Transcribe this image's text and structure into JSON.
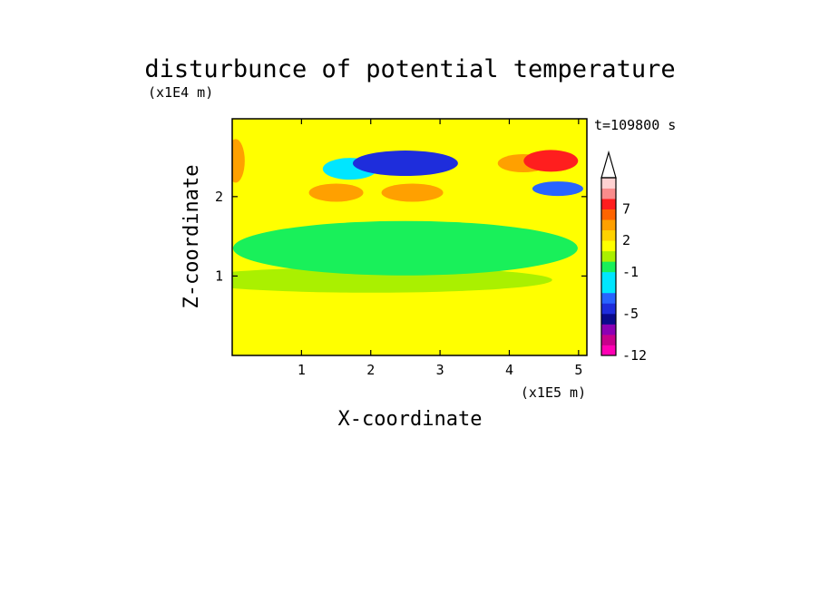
{
  "chart_data": {
    "type": "heatmap",
    "title": "disturbunce of potential temperature",
    "time_label": "t=109800 s",
    "xlabel": "X-coordinate",
    "ylabel": "Z-coordinate",
    "x_unit": "(x1E5 m)",
    "y_unit": "(x1E4 m)",
    "xlim": [
      0,
      5.12
    ],
    "ylim": [
      0,
      2.98
    ],
    "x_ticks": [
      "1",
      "2",
      "3",
      "4",
      "5"
    ],
    "x_tick_values": [
      1,
      2,
      3,
      4,
      5
    ],
    "y_ticks": [
      "1",
      "2"
    ],
    "y_tick_values": [
      1,
      2
    ],
    "colorbar": {
      "tick_labels": [
        "7",
        "2",
        "-1",
        "-5",
        "-12"
      ],
      "tick_levels": [
        7,
        2,
        -1,
        -5,
        -12
      ],
      "levels": [
        -12,
        -10,
        -8,
        -6,
        -5,
        -4,
        -3,
        -2,
        -1,
        0,
        1,
        2,
        3,
        5,
        7,
        9,
        11
      ],
      "colors": [
        "#ff00b4",
        "#c8008c",
        "#8c00b4",
        "#0a0a8c",
        "#1e2ddc",
        "#2864ff",
        "#00e6ff",
        "#00e6ff",
        "#19f05a",
        "#aaf000",
        "#ffff00",
        "#ffd200",
        "#ffa000",
        "#ff6400",
        "#ff1e1e",
        "#fa8c8c",
        "#ffd2d2"
      ],
      "extend_max": true
    },
    "features": [
      {
        "x": 0.5,
        "z": 0.4,
        "value": 1
      },
      {
        "x": 4.6,
        "z": 2.45,
        "value": 8
      },
      {
        "x": 4.2,
        "z": 2.42,
        "value": 3
      },
      {
        "x": 0.05,
        "z": 2.45,
        "value": 3
      },
      {
        "x": 2.5,
        "z": 2.42,
        "value": -5
      },
      {
        "x": 1.7,
        "z": 2.35,
        "value": -3
      },
      {
        "x": 4.7,
        "z": 2.1,
        "value": -4
      },
      {
        "x": 1.5,
        "z": 2.05,
        "value": 3
      },
      {
        "x": 2.6,
        "z": 2.05,
        "value": 3
      },
      {
        "x": 3.3,
        "z": 1.9,
        "value": 1
      },
      {
        "x": 0.8,
        "z": 1.85,
        "value": 1
      },
      {
        "x": 2.5,
        "z": 1.35,
        "value": -1
      },
      {
        "x": 2.0,
        "z": 0.95,
        "value": 0
      },
      {
        "x": 2.0,
        "z": 0.55,
        "value": 1
      }
    ]
  }
}
